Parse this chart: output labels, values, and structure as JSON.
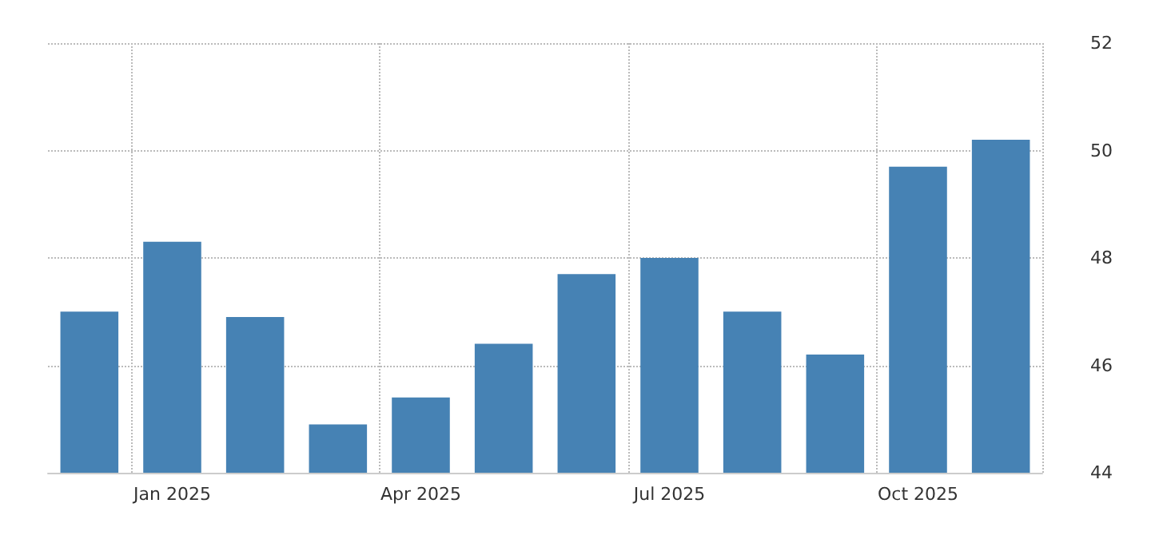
{
  "chart_data": {
    "type": "bar",
    "categories": [
      null,
      "Jan 2025",
      null,
      null,
      "Apr 2025",
      null,
      null,
      "Jul 2025",
      null,
      null,
      "Oct 2025",
      null
    ],
    "series": [
      {
        "color": "#4682b4",
        "values": [
          47.0,
          48.3,
          46.9,
          44.9,
          45.4,
          46.4,
          47.7,
          48.0,
          47.0,
          46.2,
          49.7,
          50.2
        ]
      }
    ],
    "ylim": [
      44,
      52
    ],
    "yticks": [
      44,
      46,
      48,
      50,
      52
    ],
    "grid": true
  }
}
